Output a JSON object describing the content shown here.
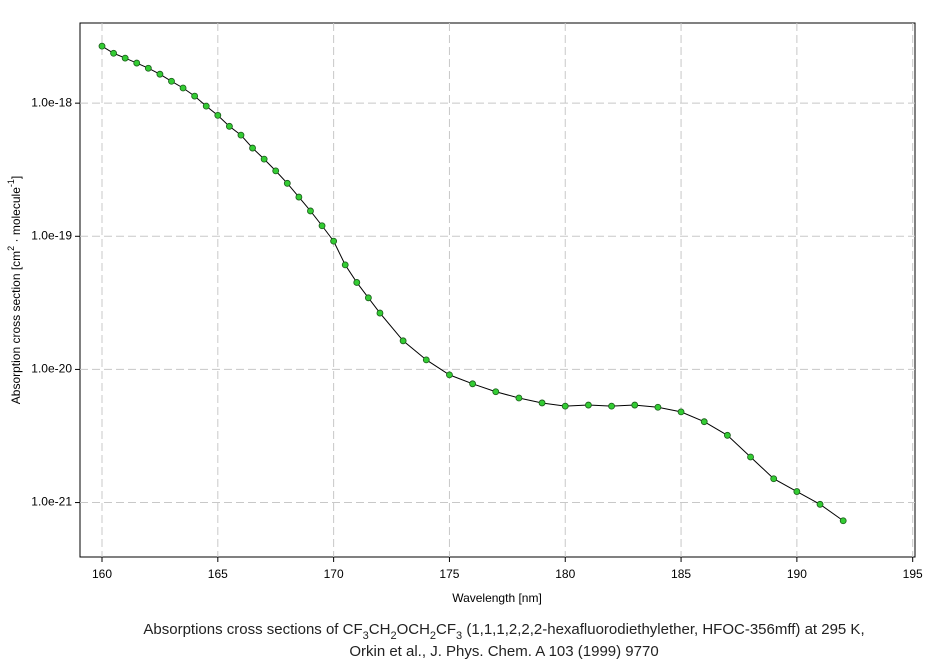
{
  "chart_data": {
    "type": "line",
    "x_label": "Wavelength [nm]",
    "y_label_parts": [
      "Absorption cross section [cm",
      "2",
      " · molecule",
      "-1",
      "]"
    ],
    "caption_line1_parts": [
      "Absorptions cross sections of CF",
      "3",
      "CH",
      "2",
      "OCH",
      "2",
      "CF",
      "3",
      " (1,1,1,2,2,2-hexafluorodiethylether, HFOC-356mff) at 295 K,"
    ],
    "caption_line2": "Orkin et al., J. Phys. Chem. A 103 (1999) 9770",
    "x": [
      160,
      160.5,
      161,
      161.5,
      162,
      162.5,
      163,
      163.5,
      164,
      164.5,
      165,
      165.5,
      166,
      166.5,
      167,
      167.5,
      168,
      168.5,
      169,
      169.5,
      170,
      170.5,
      171,
      171.5,
      172,
      173,
      174,
      175,
      176,
      177,
      178,
      179,
      180,
      181,
      182,
      183,
      184,
      185,
      186,
      187,
      188,
      189,
      190,
      191,
      192
    ],
    "values": [
      2.68e-18,
      2.37e-18,
      2.18e-18,
      2e-18,
      1.83e-18,
      1.65e-18,
      1.46e-18,
      1.3e-18,
      1.13e-18,
      9.5e-19,
      8.1e-19,
      6.7e-19,
      5.75e-19,
      4.6e-19,
      3.8e-19,
      3.1e-19,
      2.5e-19,
      1.97e-19,
      1.55e-19,
      1.2e-19,
      9.2e-20,
      6.1e-20,
      4.5e-20,
      3.45e-20,
      2.65e-20,
      1.64e-20,
      1.18e-20,
      9.1e-21,
      7.8e-21,
      6.8e-21,
      6.1e-21,
      5.6e-21,
      5.3e-21,
      5.4e-21,
      5.3e-21,
      5.4e-21,
      5.2e-21,
      4.8e-21,
      4.05e-21,
      3.2e-21,
      2.2e-21,
      1.51e-21,
      1.21e-21,
      9.7e-22,
      7.3e-22
    ],
    "color": "#000000",
    "marker_color": "#33cc33",
    "xlim": [
      159.05,
      195.1
    ],
    "xticks": [
      160,
      165,
      170,
      175,
      180,
      185,
      190,
      195
    ],
    "ylim": [
      3.9e-22,
      4e-18
    ],
    "y_scale": "log",
    "yticks": [
      {
        "value": 1e-21,
        "label": "1.0e-21"
      },
      {
        "value": 1e-20,
        "label": "1.0e-20"
      },
      {
        "value": 1e-19,
        "label": "1.0e-19"
      },
      {
        "value": 1e-18,
        "label": "1.0e-18"
      }
    ],
    "grid": true
  }
}
